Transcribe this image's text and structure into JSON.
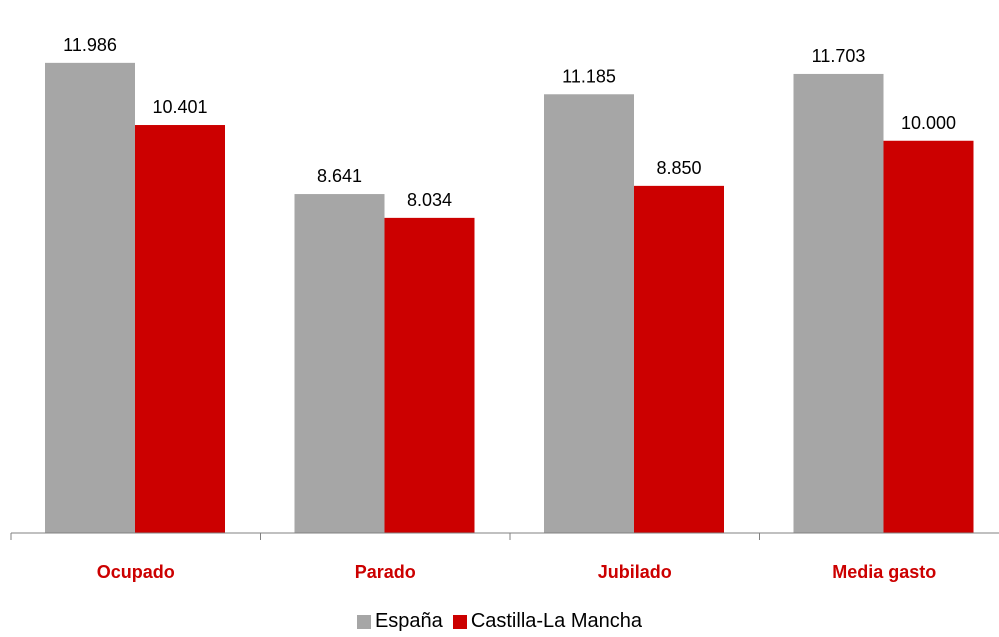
{
  "chart_data": {
    "type": "bar",
    "categories": [
      "Ocupado",
      "Parado",
      "Jubilado",
      "Media gasto"
    ],
    "series": [
      {
        "name": "España",
        "values": [
          11986,
          8641,
          11185,
          11703
        ],
        "labels": [
          "11.986",
          "8.641",
          "11.185",
          "11.703"
        ],
        "color": "#a6a6a6"
      },
      {
        "name": "Castilla-La Mancha",
        "values": [
          10401,
          8034,
          8850,
          10000
        ],
        "labels": [
          "10.401",
          "8.034",
          "8.850",
          "10.000"
        ],
        "color": "#cc0000"
      }
    ],
    "category_label_color": "#cc0000",
    "ylim": [
      0,
      12500
    ],
    "grid": false,
    "legend": "bottom"
  }
}
